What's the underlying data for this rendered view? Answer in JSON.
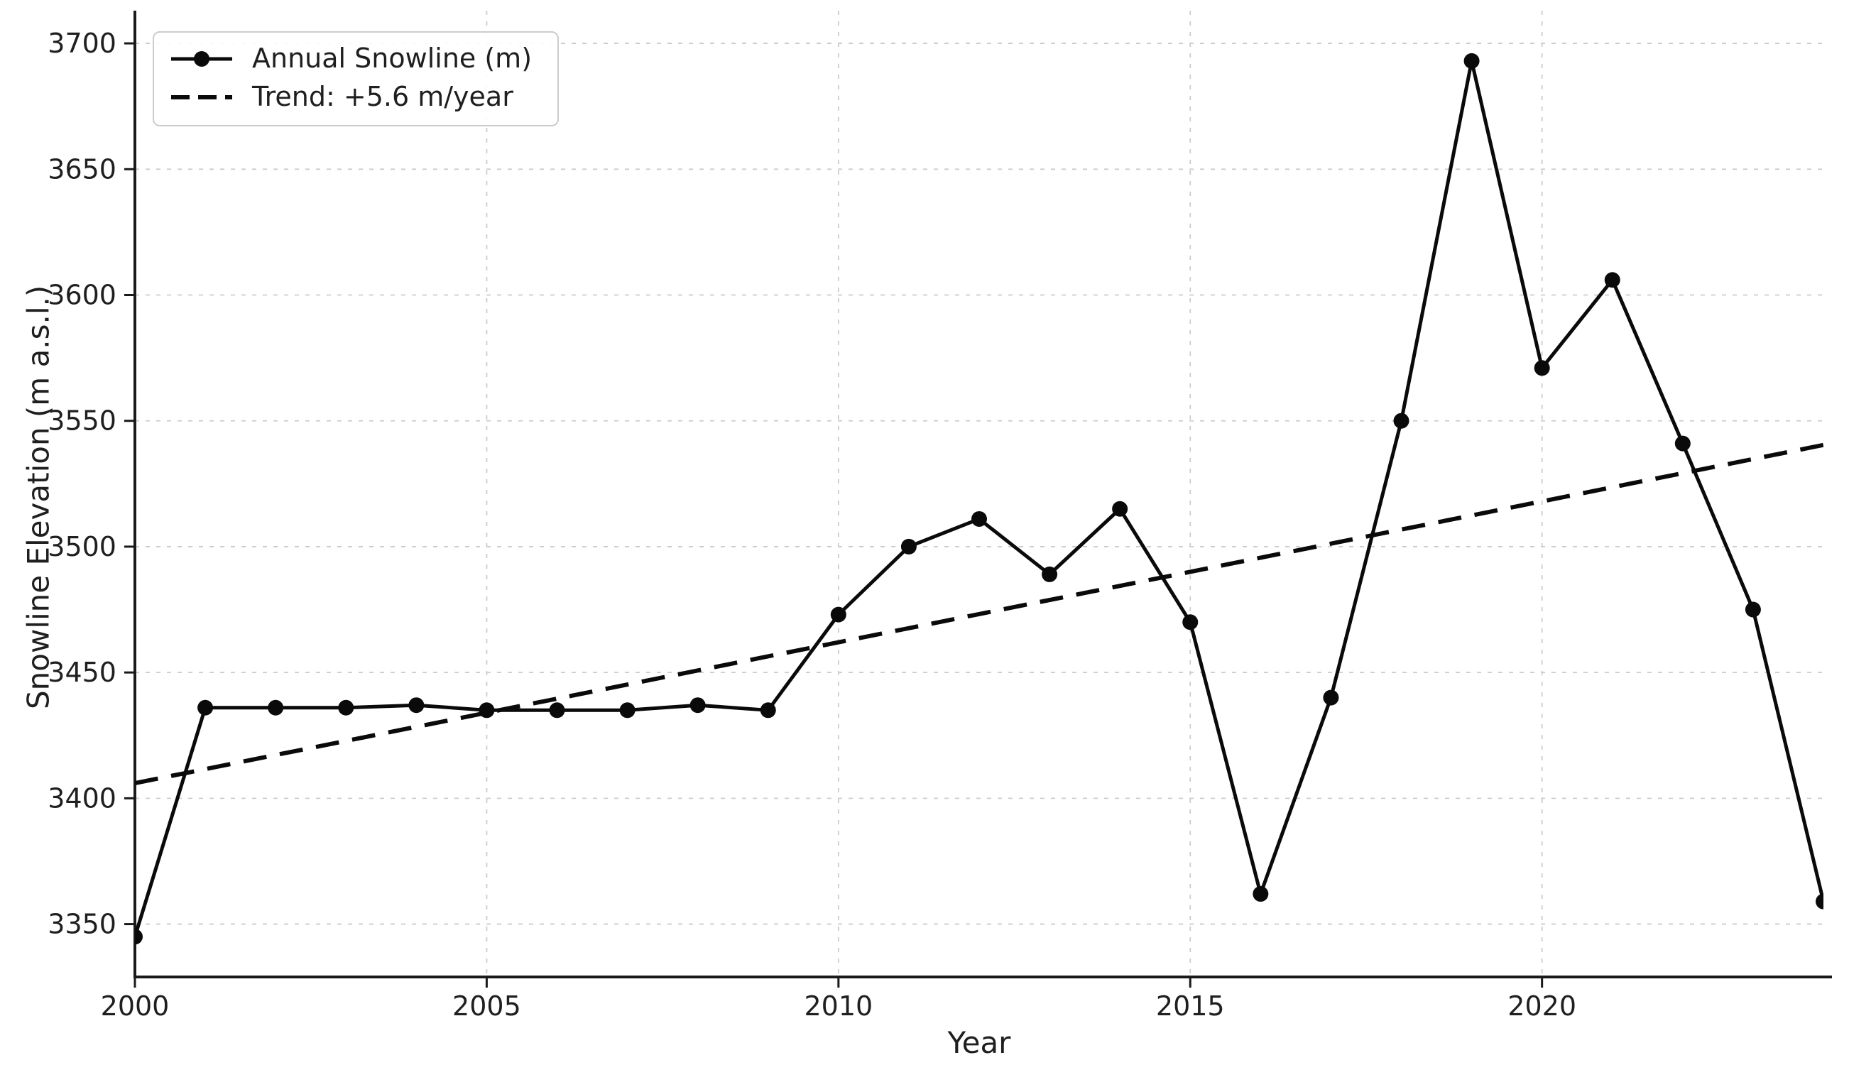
{
  "colors": {
    "line": "#0a0a0a",
    "trend_line": "#0a0a0a",
    "grid": "#cccccc",
    "spine": "#1a1a1a",
    "tick": "#1a1a1a",
    "text": "#1f1f1f",
    "legend_border": "#cccccc",
    "background": "#ffffff"
  },
  "legend": {
    "entries": [
      {
        "label": "Annual Snowline (m)",
        "sample": "solid-line-with-circle-marker"
      },
      {
        "label": "Trend: +5.6 m/year",
        "sample": "dashed-line"
      }
    ],
    "position": "upper left"
  },
  "chart_data": {
    "type": "line",
    "title": "",
    "xlabel": "Year",
    "ylabel": "Snowline Elevation (m a.s.l.)",
    "xlim": [
      2000,
      2024
    ],
    "ylim": [
      3329,
      3713
    ],
    "x_ticks": [
      2000,
      2005,
      2010,
      2015,
      2020
    ],
    "y_ticks": [
      3350,
      3400,
      3450,
      3500,
      3550,
      3600,
      3650,
      3700
    ],
    "grid": true,
    "grid_style": "dashed",
    "legend_position": "upper-left",
    "x": [
      2000,
      2001,
      2002,
      2003,
      2004,
      2005,
      2006,
      2007,
      2008,
      2009,
      2010,
      2011,
      2012,
      2013,
      2014,
      2015,
      2016,
      2017,
      2018,
      2019,
      2020,
      2021,
      2022,
      2023,
      2024
    ],
    "series": [
      {
        "name": "Annual Snowline (m)",
        "style": "solid",
        "marker": "circle",
        "values": [
          3345,
          3436,
          3436,
          3436,
          3437,
          3435,
          3435,
          3435,
          3437,
          3435,
          3473,
          3500,
          3511,
          3489,
          3515,
          3470,
          3362,
          3440,
          3550,
          3693,
          3571,
          3606,
          3541,
          3475,
          3359
        ]
      },
      {
        "name": "Trend: +5.6 m/year",
        "style": "dashed",
        "marker": "none",
        "trend_slope_m_per_year": 5.6,
        "x": [
          2000,
          2024
        ],
        "values": [
          3406,
          3540.4
        ]
      }
    ]
  }
}
